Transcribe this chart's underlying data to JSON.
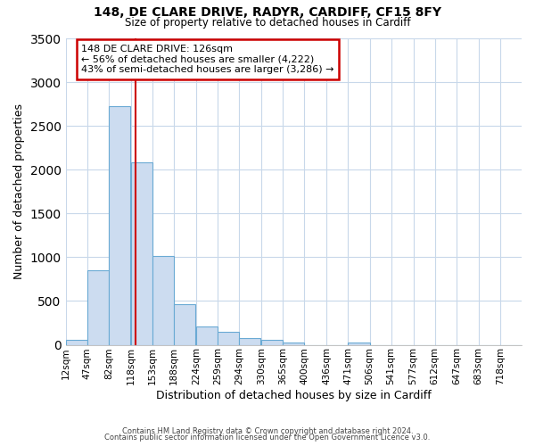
{
  "title": "148, DE CLARE DRIVE, RADYR, CARDIFF, CF15 8FY",
  "subtitle": "Size of property relative to detached houses in Cardiff",
  "xlabel": "Distribution of detached houses by size in Cardiff",
  "ylabel": "Number of detached properties",
  "bar_color": "#ccdcf0",
  "bar_edge_color": "#6aaad4",
  "background_color": "#ffffff",
  "grid_color": "#c8d8ea",
  "bin_labels": [
    "12sqm",
    "47sqm",
    "82sqm",
    "118sqm",
    "153sqm",
    "188sqm",
    "224sqm",
    "259sqm",
    "294sqm",
    "330sqm",
    "365sqm",
    "400sqm",
    "436sqm",
    "471sqm",
    "506sqm",
    "541sqm",
    "577sqm",
    "612sqm",
    "647sqm",
    "683sqm",
    "718sqm"
  ],
  "bin_left_edges": [
    12,
    47,
    82,
    118,
    153,
    188,
    224,
    259,
    294,
    330,
    365,
    400,
    436,
    471,
    506,
    541,
    577,
    612,
    647,
    683,
    718
  ],
  "bin_width": 35,
  "bar_heights": [
    55,
    850,
    2730,
    2080,
    1010,
    460,
    205,
    145,
    75,
    60,
    30,
    0,
    0,
    30,
    0,
    0,
    0,
    0,
    0,
    0,
    0
  ],
  "vline_x": 126,
  "vline_color": "#cc0000",
  "annotation_title": "148 DE CLARE DRIVE: 126sqm",
  "annotation_line1": "← 56% of detached houses are smaller (4,222)",
  "annotation_line2": "43% of semi-detached houses are larger (3,286) →",
  "annotation_box_edge": "#cc0000",
  "ylim": [
    0,
    3500
  ],
  "xlim_left": 12,
  "xlim_right": 753,
  "yticks": [
    0,
    500,
    1000,
    1500,
    2000,
    2500,
    3000,
    3500
  ],
  "footer1": "Contains HM Land Registry data © Crown copyright and database right 2024.",
  "footer2": "Contains public sector information licensed under the Open Government Licence v3.0."
}
